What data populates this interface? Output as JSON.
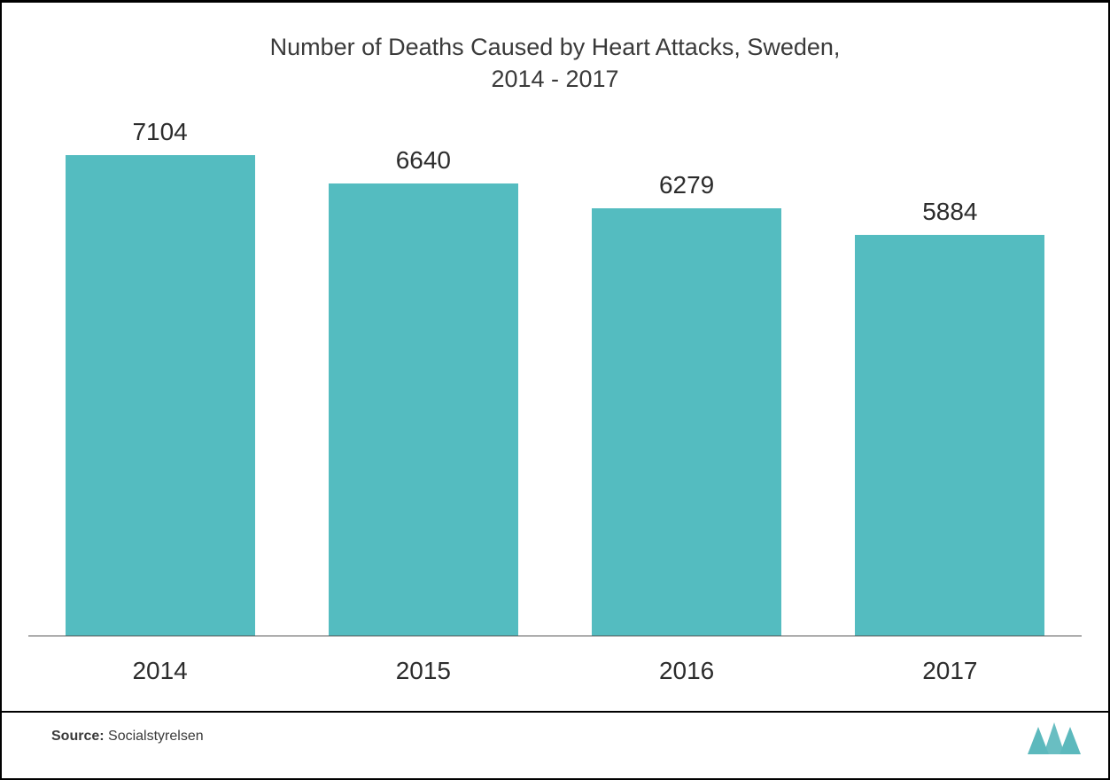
{
  "chart": {
    "type": "bar",
    "title_line1": "Number of Deaths Caused by Heart Attacks, Sweden,",
    "title_line2": "2014 - 2017",
    "title_fontsize": 27,
    "title_color": "#3a3a3a",
    "categories": [
      "2014",
      "2015",
      "2016",
      "2017"
    ],
    "values": [
      7104,
      6640,
      6279,
      5884
    ],
    "bar_color": "#54bcc0",
    "value_label_color": "#2c2c2c",
    "value_label_fontsize": 28,
    "x_label_color": "#2c2c2c",
    "x_label_fontsize": 28,
    "ylim_max": 7600,
    "background_color": "#ffffff",
    "baseline_color": "#555555",
    "border_color": "#000000",
    "bar_width_ratio": 0.72
  },
  "source": {
    "label": "Source:",
    "value": "Socialstyrelsen",
    "fontsize": 16,
    "color": "#3a3a3a"
  },
  "logo": {
    "stroke_color": "#2e687a",
    "fill_color": "#5cb9bd"
  }
}
